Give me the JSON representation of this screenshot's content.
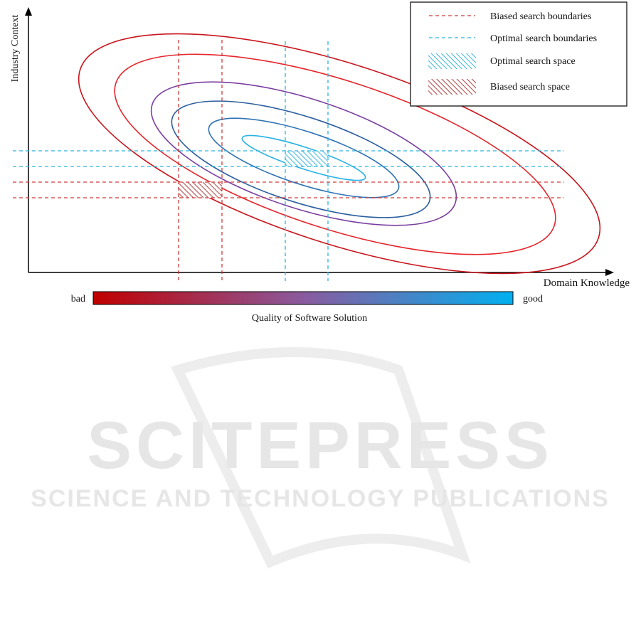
{
  "figure": {
    "x_axis_label": "Domain Knowledge",
    "y_axis_label": "Industry Context",
    "colorbar": {
      "low_label": "bad",
      "high_label": "good",
      "caption": "Quality of Software Solution",
      "low_color": "#c00000",
      "high_color": "#00b0f0"
    }
  },
  "legend": {
    "items": [
      {
        "label": "Biased search boundaries",
        "kind": "dashed-line",
        "color": "#d23a3a"
      },
      {
        "label": "Optimal search  boundaries",
        "kind": "dashed-line",
        "color": "#2bb5e0"
      },
      {
        "label": "Optimal search  space",
        "kind": "hatch",
        "color": "#3ab7de"
      },
      {
        "label": "Biased search space",
        "kind": "hatch",
        "color": "#b84040"
      }
    ]
  },
  "contour_colors": [
    "#c8161d",
    "#e5262b",
    "#7b3fa1",
    "#2b5e9e",
    "#2f73b5",
    "#29b2e3"
  ],
  "watermark": {
    "title": "SCITEPRESS",
    "subtitle": "SCIENCE AND TECHNOLOGY PUBLICATIONS"
  }
}
